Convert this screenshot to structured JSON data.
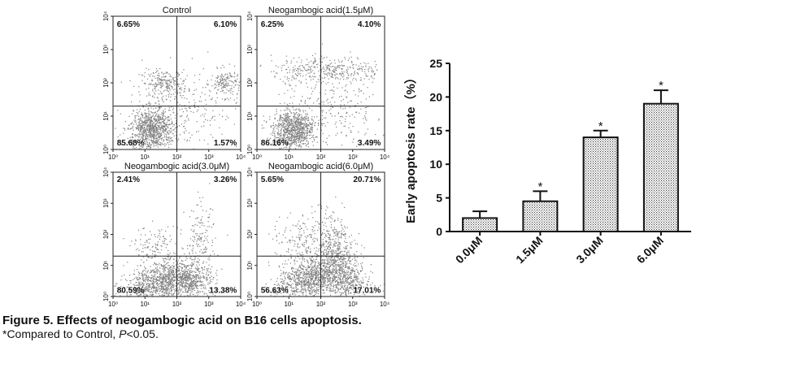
{
  "chart_data": [
    {
      "type": "scatter",
      "title": "Control",
      "x_ticks": [
        "10⁰",
        "10¹",
        "10²",
        "10³",
        "10⁴"
      ],
      "y_ticks": [
        "10⁰",
        "10¹",
        "10²",
        "10³",
        "10⁴"
      ],
      "xlim": [
        1,
        10000
      ],
      "ylim": [
        1,
        10000
      ],
      "log_scale": true,
      "quadrant_gates": {
        "x": 100,
        "y": 20
      },
      "quadrants": {
        "upper_left": "6.65%",
        "upper_right": "6.10%",
        "lower_left": "85.68%",
        "lower_right": "1.57%"
      }
    },
    {
      "type": "scatter",
      "title": "Neogambogic acid(1.5μM)",
      "x_ticks": [
        "10⁰",
        "10¹",
        "10²",
        "10³",
        "10⁴"
      ],
      "y_ticks": [
        "10⁰",
        "10¹",
        "10²",
        "10³",
        "10⁴"
      ],
      "xlim": [
        1,
        10000
      ],
      "ylim": [
        1,
        10000
      ],
      "log_scale": true,
      "quadrant_gates": {
        "x": 100,
        "y": 20
      },
      "quadrants": {
        "upper_left": "6.25%",
        "upper_right": "4.10%",
        "lower_left": "86.16%",
        "lower_right": "3.49%"
      }
    },
    {
      "type": "scatter",
      "title": "Neogambogic acid(3.0μM)",
      "x_ticks": [
        "10⁰",
        "10¹",
        "10²",
        "10³",
        "10⁴"
      ],
      "y_ticks": [
        "10⁰",
        "10¹",
        "10²",
        "10³",
        "10⁴"
      ],
      "xlim": [
        1,
        10000
      ],
      "ylim": [
        1,
        10000
      ],
      "log_scale": true,
      "quadrant_gates": {
        "x": 100,
        "y": 20
      },
      "quadrants": {
        "upper_left": "2.41%",
        "upper_right": "3.26%",
        "lower_left": "80.59%",
        "lower_right": "13.38%"
      }
    },
    {
      "type": "scatter",
      "title": "Neogambogic acid(6.0μM)",
      "x_ticks": [
        "10⁰",
        "10¹",
        "10²",
        "10³",
        "10⁴"
      ],
      "y_ticks": [
        "10⁰",
        "10¹",
        "10²",
        "10³",
        "10⁴"
      ],
      "xlim": [
        1,
        10000
      ],
      "ylim": [
        1,
        10000
      ],
      "log_scale": true,
      "quadrant_gates": {
        "x": 100,
        "y": 20
      },
      "quadrants": {
        "upper_left": "5.65%",
        "upper_right": "20.71%",
        "lower_left": "56.63%",
        "lower_right": "17.01%"
      }
    },
    {
      "type": "bar",
      "ylabel": "Early apoptosis rate（%）",
      "categories": [
        "0.0μM",
        "1.5μM",
        "3.0μM",
        "6.0μM"
      ],
      "values": [
        2,
        4.5,
        14,
        19
      ],
      "errors": [
        1,
        1.5,
        1,
        2
      ],
      "significance": [
        "",
        "*",
        "*",
        "*"
      ],
      "ylim": [
        0,
        25
      ],
      "yticks": [
        "0",
        "5",
        "10",
        "15",
        "20",
        "25"
      ],
      "pattern": "crosshatch"
    }
  ],
  "caption": {
    "title": "Figure 5. Effects of neogambogic acid on B16 cells apoptosis.",
    "note_prefix": "*Compared to Control, ",
    "note_italic": "P",
    "note_suffix": "<0.05."
  }
}
